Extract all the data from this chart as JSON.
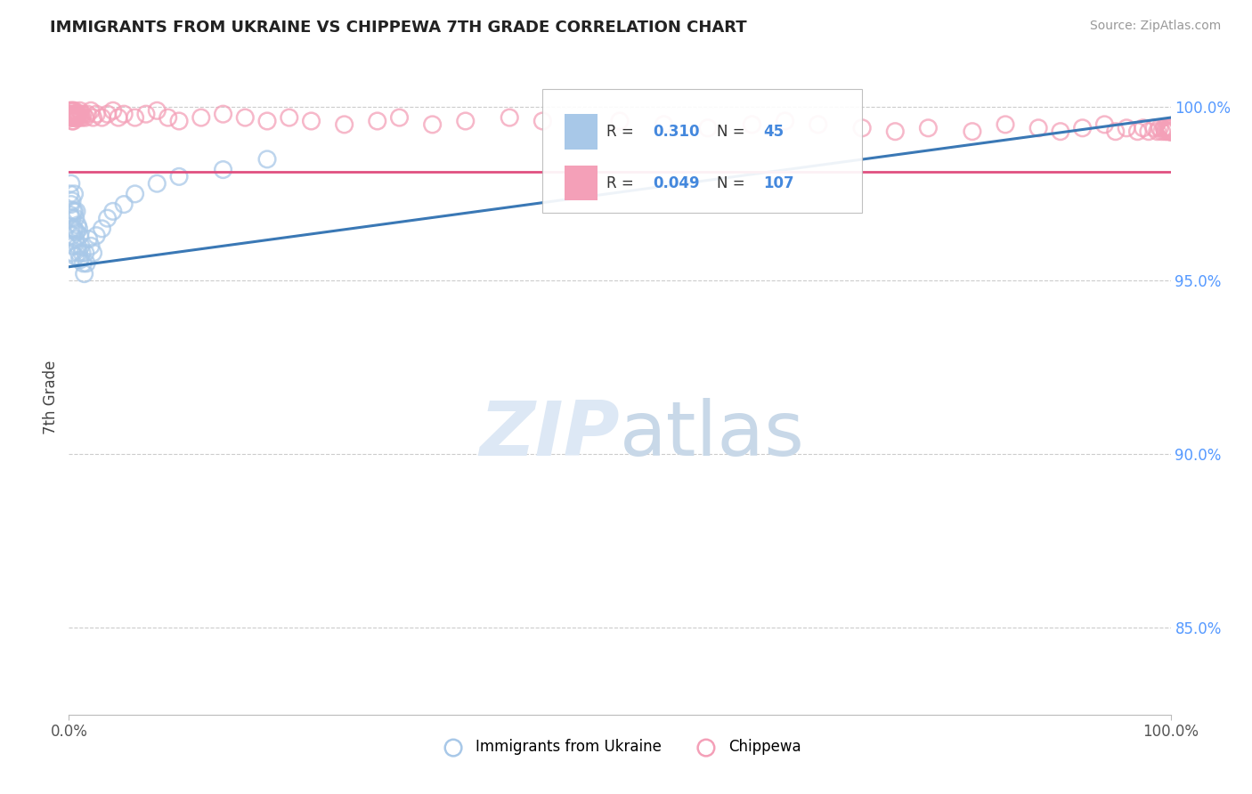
{
  "title": "IMMIGRANTS FROM UKRAINE VS CHIPPEWA 7TH GRADE CORRELATION CHART",
  "source": "Source: ZipAtlas.com",
  "ylabel": "7th Grade",
  "ytick_labels": [
    "85.0%",
    "90.0%",
    "95.0%",
    "100.0%"
  ],
  "ytick_values": [
    0.85,
    0.9,
    0.95,
    1.0
  ],
  "legend_blue_label": "Immigrants from Ukraine",
  "legend_pink_label": "Chippewa",
  "R_blue": 0.31,
  "N_blue": 45,
  "R_pink": 0.049,
  "N_pink": 107,
  "blue_color": "#a8c8e8",
  "pink_color": "#f4a0b8",
  "blue_line_color": "#3a78b5",
  "pink_line_color": "#e05080",
  "ylim_low": 0.825,
  "ylim_high": 1.008,
  "blue_scatter_x": [
    0.001,
    0.001,
    0.002,
    0.002,
    0.002,
    0.003,
    0.003,
    0.003,
    0.003,
    0.004,
    0.004,
    0.004,
    0.005,
    0.005,
    0.005,
    0.006,
    0.006,
    0.006,
    0.007,
    0.007,
    0.008,
    0.008,
    0.009,
    0.009,
    0.01,
    0.01,
    0.011,
    0.012,
    0.013,
    0.014,
    0.015,
    0.016,
    0.018,
    0.02,
    0.022,
    0.025,
    0.03,
    0.035,
    0.04,
    0.05,
    0.06,
    0.08,
    0.1,
    0.14,
    0.18
  ],
  "blue_scatter_y": [
    0.969,
    0.975,
    0.972,
    0.978,
    0.965,
    0.973,
    0.968,
    0.963,
    0.958,
    0.97,
    0.965,
    0.96,
    0.975,
    0.97,
    0.965,
    0.968,
    0.962,
    0.957,
    0.97,
    0.964,
    0.966,
    0.96,
    0.965,
    0.958,
    0.963,
    0.956,
    0.96,
    0.958,
    0.955,
    0.952,
    0.958,
    0.955,
    0.962,
    0.96,
    0.958,
    0.963,
    0.965,
    0.968,
    0.97,
    0.972,
    0.975,
    0.978,
    0.98,
    0.982,
    0.985
  ],
  "pink_scatter_x": [
    0.001,
    0.001,
    0.001,
    0.002,
    0.002,
    0.002,
    0.003,
    0.003,
    0.003,
    0.003,
    0.004,
    0.004,
    0.004,
    0.004,
    0.005,
    0.005,
    0.005,
    0.006,
    0.006,
    0.007,
    0.007,
    0.008,
    0.008,
    0.009,
    0.01,
    0.01,
    0.011,
    0.012,
    0.013,
    0.015,
    0.017,
    0.02,
    0.022,
    0.025,
    0.03,
    0.035,
    0.04,
    0.045,
    0.05,
    0.06,
    0.07,
    0.08,
    0.09,
    0.1,
    0.12,
    0.14,
    0.16,
    0.18,
    0.2,
    0.22,
    0.25,
    0.28,
    0.3,
    0.33,
    0.36,
    0.4,
    0.43,
    0.46,
    0.5,
    0.54,
    0.58,
    0.62,
    0.65,
    0.68,
    0.72,
    0.75,
    0.78,
    0.82,
    0.85,
    0.88,
    0.9,
    0.92,
    0.94,
    0.95,
    0.96,
    0.97,
    0.975,
    0.98,
    0.985,
    0.988,
    0.99,
    0.992,
    0.994,
    0.995,
    0.996,
    0.997,
    0.998,
    0.9985,
    0.999,
    0.9993,
    0.9996,
    0.9998,
    0.9999,
    0.99995,
    0.99998,
    0.99999,
    0.999995,
    0.999998,
    0.9999985,
    0.999999,
    0.9999993,
    0.9999996,
    0.9999998,
    0.9999999,
    0.99999995
  ],
  "pink_scatter_y": [
    0.999,
    0.998,
    0.997,
    0.999,
    0.998,
    0.997,
    0.999,
    0.998,
    0.997,
    0.996,
    0.999,
    0.998,
    0.997,
    0.996,
    0.999,
    0.998,
    0.997,
    0.998,
    0.997,
    0.998,
    0.997,
    0.998,
    0.997,
    0.998,
    0.999,
    0.997,
    0.998,
    0.997,
    0.998,
    0.997,
    0.998,
    0.999,
    0.997,
    0.998,
    0.997,
    0.998,
    0.999,
    0.997,
    0.998,
    0.997,
    0.998,
    0.999,
    0.997,
    0.996,
    0.997,
    0.998,
    0.997,
    0.996,
    0.997,
    0.996,
    0.995,
    0.996,
    0.997,
    0.995,
    0.996,
    0.997,
    0.996,
    0.995,
    0.996,
    0.995,
    0.994,
    0.995,
    0.996,
    0.995,
    0.994,
    0.993,
    0.994,
    0.993,
    0.995,
    0.994,
    0.993,
    0.994,
    0.995,
    0.993,
    0.994,
    0.993,
    0.994,
    0.993,
    0.994,
    0.993,
    0.994,
    0.993,
    0.994,
    0.993,
    0.994,
    0.993,
    0.994,
    0.993,
    0.994,
    0.993,
    0.994,
    0.993,
    0.994,
    0.993,
    0.994,
    0.993,
    0.994,
    0.993,
    0.994,
    0.993,
    0.994,
    0.993,
    0.994,
    0.993,
    0.994
  ]
}
